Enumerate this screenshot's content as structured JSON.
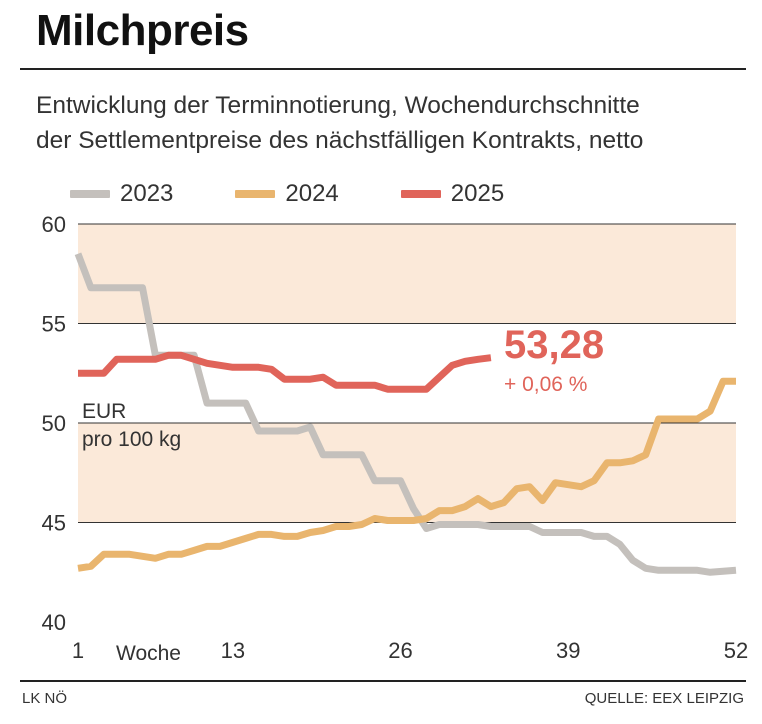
{
  "header": {
    "title": "Milchpreis",
    "subtitle_line1": "Entwicklung der Terminnotierung, Wochendurchschnitte",
    "subtitle_line2": "der Settlementpreise des nächstfälligen Kontrakts, netto"
  },
  "footer": {
    "left": "LK NÖ",
    "right": "QUELLE: EEX LEIPZIG"
  },
  "colors": {
    "band": "#fbe9d9",
    "2023": "#c4c0bc",
    "2024": "#e9b56e",
    "2025": "#e0645a"
  },
  "chart_data": {
    "type": "line",
    "title": "Milchpreis",
    "ylabel": "EUR pro 100 kg",
    "ylabel_line1": "EUR",
    "ylabel_line2": "pro 100 kg",
    "xlabel": "Woche",
    "xlim": [
      1,
      52
    ],
    "ylim": [
      40,
      60
    ],
    "xticks": [
      1,
      13,
      26,
      39,
      52
    ],
    "yticks": [
      40,
      45,
      50,
      55,
      60
    ],
    "shaded_bands": [
      [
        45,
        50
      ],
      [
        55,
        60
      ]
    ],
    "legend_position": "top",
    "highlight": {
      "value": "53,28",
      "change": "+ 0,06 %"
    },
    "series": [
      {
        "name": "2023",
        "color": "#c4c0bc",
        "x": [
          1,
          2,
          3,
          4,
          5,
          6,
          7,
          8,
          9,
          10,
          11,
          12,
          13,
          14,
          15,
          16,
          17,
          18,
          19,
          20,
          21,
          22,
          23,
          24,
          25,
          26,
          27,
          28,
          29,
          30,
          31,
          32,
          33,
          34,
          35,
          36,
          37,
          38,
          39,
          40,
          41,
          42,
          43,
          44,
          45,
          46,
          47,
          48,
          49,
          50,
          51,
          52
        ],
        "values": [
          58.5,
          56.8,
          56.8,
          56.8,
          56.8,
          56.8,
          53.4,
          53.4,
          53.4,
          53.4,
          51.0,
          51.0,
          51.0,
          51.0,
          49.6,
          49.6,
          49.6,
          49.6,
          49.8,
          48.4,
          48.4,
          48.4,
          48.4,
          47.1,
          47.1,
          47.1,
          45.7,
          44.7,
          44.9,
          44.9,
          44.9,
          44.9,
          44.8,
          44.8,
          44.8,
          44.8,
          44.5,
          44.5,
          44.5,
          44.5,
          44.3,
          44.3,
          43.9,
          43.1,
          42.7,
          42.6,
          42.6,
          42.6,
          42.6,
          42.5,
          42.55,
          42.6
        ]
      },
      {
        "name": "2024",
        "color": "#e9b56e",
        "x": [
          1,
          2,
          3,
          4,
          5,
          6,
          7,
          8,
          9,
          10,
          11,
          12,
          13,
          14,
          15,
          16,
          17,
          18,
          19,
          20,
          21,
          22,
          23,
          24,
          25,
          26,
          27,
          28,
          29,
          30,
          31,
          32,
          33,
          34,
          35,
          36,
          37,
          38,
          39,
          40,
          41,
          42,
          43,
          44,
          45,
          46,
          47,
          48,
          49,
          50,
          51,
          52
        ],
        "values": [
          42.7,
          42.8,
          43.4,
          43.4,
          43.4,
          43.3,
          43.2,
          43.4,
          43.4,
          43.6,
          43.8,
          43.8,
          44.0,
          44.2,
          44.4,
          44.4,
          44.3,
          44.3,
          44.5,
          44.6,
          44.8,
          44.8,
          44.9,
          45.2,
          45.1,
          45.1,
          45.1,
          45.2,
          45.6,
          45.6,
          45.8,
          46.2,
          45.8,
          46.0,
          46.7,
          46.8,
          46.1,
          47.0,
          46.9,
          46.8,
          47.1,
          48.0,
          48.0,
          48.1,
          48.4,
          50.2,
          50.2,
          50.2,
          50.2,
          50.6,
          52.1,
          52.1
        ]
      },
      {
        "name": "2025",
        "color": "#e0645a",
        "x": [
          1,
          2,
          3,
          4,
          5,
          6,
          7,
          8,
          9,
          10,
          11,
          12,
          13,
          14,
          15,
          16,
          17,
          18,
          19,
          20,
          21,
          22,
          23,
          24,
          25,
          26,
          27,
          28,
          29,
          30,
          31,
          32,
          33
        ],
        "values": [
          52.5,
          52.5,
          52.5,
          53.2,
          53.2,
          53.2,
          53.2,
          53.4,
          53.4,
          53.2,
          53.0,
          52.9,
          52.8,
          52.8,
          52.8,
          52.7,
          52.2,
          52.2,
          52.2,
          52.3,
          51.9,
          51.9,
          51.9,
          51.9,
          51.7,
          51.7,
          51.7,
          51.7,
          52.3,
          52.9,
          53.1,
          53.2,
          53.28
        ]
      }
    ]
  }
}
